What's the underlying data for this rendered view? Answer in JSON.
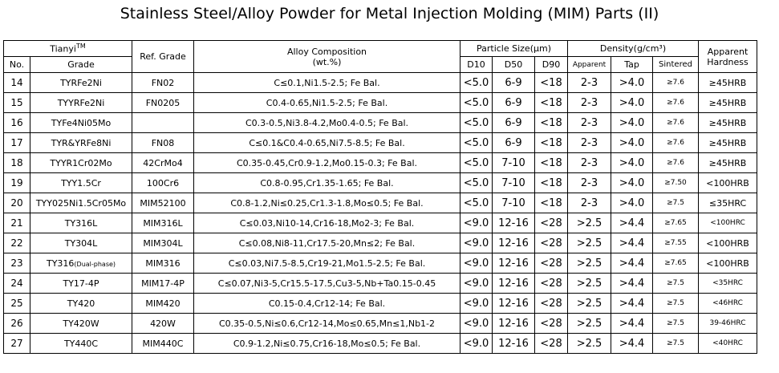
{
  "title": "Stainless Steel/Alloy Powder for Metal Injection Molding (MIM) Parts (II)",
  "header": {
    "brand": "Tianyi",
    "brand_sup": "TM",
    "no": "No.",
    "grade": "Grade",
    "ref_grade": "Ref. Grade",
    "alloy_composition": "Alloy Composition",
    "alloy_unit": "(wt.%)",
    "particle_size": "Particle Size(μm)",
    "d10": "D10",
    "d50": "D50",
    "d90": "D90",
    "density": "Density(g/cm³)",
    "apparent": "Apparent",
    "tap": "Tap",
    "sintered": "Sintered",
    "apparent_hardness_1": "Apparent",
    "apparent_hardness_2": "Hardness"
  },
  "rows": [
    {
      "no": "14",
      "grade": "TYRFe2Ni",
      "grade_note": "",
      "ref": "FN02",
      "comp": "C≤0.1,Ni1.5-2.5; Fe Bal.",
      "d10": "<5.0",
      "d50": "6-9",
      "d90": "<18",
      "apparent": "2-3",
      "tap": ">4.0",
      "sintered": "≥7.6",
      "hardness": "≥45HRB"
    },
    {
      "no": "15",
      "grade": "TYYRFe2Ni",
      "grade_note": "",
      "ref": "FN0205",
      "comp": "C0.4-0.65,Ni1.5-2.5; Fe Bal.",
      "d10": "<5.0",
      "d50": "6-9",
      "d90": "<18",
      "apparent": "2-3",
      "tap": ">4.0",
      "sintered": "≥7.6",
      "hardness": "≥45HRB"
    },
    {
      "no": "16",
      "grade": "TYFe4Ni05Mo",
      "grade_note": "",
      "ref": "",
      "comp": "C0.3-0.5,Ni3.8-4.2,Mo0.4-0.5; Fe Bal.",
      "d10": "<5.0",
      "d50": "6-9",
      "d90": "<18",
      "apparent": "2-3",
      "tap": ">4.0",
      "sintered": "≥7.6",
      "hardness": "≥45HRB"
    },
    {
      "no": "17",
      "grade": "TYR&YRFe8Ni",
      "grade_note": "",
      "ref": "FN08",
      "comp": "C≤0.1&C0.4-0.65,Ni7.5-8.5; Fe Bal.",
      "d10": "<5.0",
      "d50": "6-9",
      "d90": "<18",
      "apparent": "2-3",
      "tap": ">4.0",
      "sintered": "≥7.6",
      "hardness": "≥45HRB"
    },
    {
      "no": "18",
      "grade": "TYYR1Cr02Mo",
      "grade_note": "",
      "ref": "42CrMo4",
      "comp": "C0.35-0.45,Cr0.9-1.2,Mo0.15-0.3; Fe Bal.",
      "d10": "<5.0",
      "d50": "7-10",
      "d90": "<18",
      "apparent": "2-3",
      "tap": ">4.0",
      "sintered": "≥7.6",
      "hardness": "≥45HRB"
    },
    {
      "no": "19",
      "grade": "TYY1.5Cr",
      "grade_note": "",
      "ref": "100Cr6",
      "comp": "C0.8-0.95,Cr1.35-1.65; Fe Bal.",
      "d10": "<5.0",
      "d50": "7-10",
      "d90": "<18",
      "apparent": "2-3",
      "tap": ">4.0",
      "sintered": "≥7.50",
      "hardness": "<100HRB"
    },
    {
      "no": "20",
      "grade": "TYY025Ni1.5Cr05Mo",
      "grade_note": "",
      "ref": "MIM52100",
      "comp": "C0.8-1.2,Ni≤0.25,Cr1.3-1.8,Mo≤0.5; Fe Bal.",
      "d10": "<5.0",
      "d50": "7-10",
      "d90": "<18",
      "apparent": "2-3",
      "tap": ">4.0",
      "sintered": "≥7.5",
      "hardness": "≤35HRC"
    },
    {
      "no": "21",
      "grade": "TY316L",
      "grade_note": "",
      "ref": "MIM316L",
      "comp": "C≤0.03,Ni10-14,Cr16-18,Mo2-3; Fe Bal.",
      "d10": "<9.0",
      "d50": "12-16",
      "d90": "<28",
      "apparent": ">2.5",
      "tap": ">4.4",
      "sintered": "≥7.65",
      "hardness": "<100HRC"
    },
    {
      "no": "22",
      "grade": "TY304L",
      "grade_note": "",
      "ref": "MIM304L",
      "comp": "C≤0.08,Ni8-11,Cr17.5-20,Mn≤2; Fe Bal.",
      "d10": "<9.0",
      "d50": "12-16",
      "d90": "<28",
      "apparent": ">2.5",
      "tap": ">4.4",
      "sintered": "≥7.55",
      "hardness": "<100HRB"
    },
    {
      "no": "23",
      "grade": "TY316",
      "grade_note": "(Dual-phase)",
      "ref": "MIM316",
      "comp": "C≤0.03,Ni7.5-8.5,Cr19-21,Mo1.5-2.5; Fe Bal.",
      "d10": "<9.0",
      "d50": "12-16",
      "d90": "<28",
      "apparent": ">2.5",
      "tap": ">4.4",
      "sintered": "≥7.65",
      "hardness": "<100HRB"
    },
    {
      "no": "24",
      "grade": "TY17-4P",
      "grade_note": "",
      "ref": "MIM17-4P",
      "comp": "C≤0.07,Ni3-5,Cr15.5-17.5,Cu3-5,Nb+Ta0.15-0.45",
      "d10": "<9.0",
      "d50": "12-16",
      "d90": "<28",
      "apparent": ">2.5",
      "tap": ">4.4",
      "sintered": "≥7.5",
      "hardness": "<35HRC"
    },
    {
      "no": "25",
      "grade": "TY420",
      "grade_note": "",
      "ref": "MIM420",
      "comp": "C0.15-0.4,Cr12-14; Fe Bal.",
      "d10": "<9.0",
      "d50": "12-16",
      "d90": "<28",
      "apparent": ">2.5",
      "tap": ">4.4",
      "sintered": "≥7.5",
      "hardness": "<46HRC"
    },
    {
      "no": "26",
      "grade": "TY420W",
      "grade_note": "",
      "ref": "420W",
      "comp": "C0.35-0.5,Ni≤0.6,Cr12-14,Mo≤0.65,Mn≤1,Nb1-2",
      "d10": "<9.0",
      "d50": "12-16",
      "d90": "<28",
      "apparent": ">2.5",
      "tap": ">4.4",
      "sintered": "≥7.5",
      "hardness": "39-46HRC"
    },
    {
      "no": "27",
      "grade": "TY440C",
      "grade_note": "",
      "ref": "MIM440C",
      "comp": "C0.9-1.2,Ni≤0.75,Cr16-18,Mo≤0.5; Fe Bal.",
      "d10": "<9.0",
      "d50": "12-16",
      "d90": "<28",
      "apparent": ">2.5",
      "tap": ">4.4",
      "sintered": "≥7.5",
      "hardness": "<40HRC"
    }
  ]
}
